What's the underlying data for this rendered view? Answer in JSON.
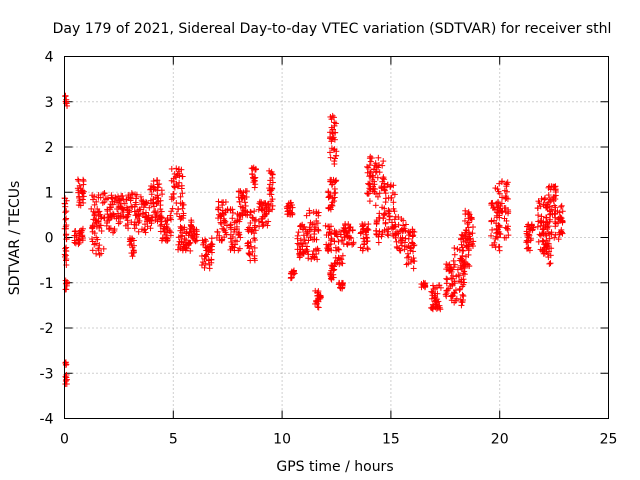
{
  "chart_data": {
    "type": "scatter",
    "title": "Day 179 of 2021, Sidereal Day-to-day VTEC variation (SDTVAR) for receiver sthl",
    "xlabel": "GPS time / hours",
    "ylabel": "SDTVAR / TECUs",
    "xlim": [
      0,
      25
    ],
    "ylim": [
      -4,
      4
    ],
    "xticks": [
      "0",
      "5",
      "10",
      "15",
      "20",
      "25"
    ],
    "yticks": [
      "-4",
      "-3",
      "-2",
      "-1",
      "0",
      "1",
      "2",
      "3",
      "4"
    ],
    "grid": true,
    "marker": "+",
    "color": "#ff0000",
    "series": [
      {
        "name": "sthl",
        "segments": [
          {
            "x0": 0.0,
            "x1": 0.1,
            "ylo": -0.7,
            "yhi": 1.1
          },
          {
            "x0": 0.03,
            "x1": 0.12,
            "ylo": 2.85,
            "yhi": 3.15
          },
          {
            "x0": 0.03,
            "x1": 0.12,
            "ylo": -3.3,
            "yhi": -2.75
          },
          {
            "x0": 0.05,
            "x1": 0.12,
            "ylo": -1.25,
            "yhi": -0.95
          },
          {
            "x0": 0.45,
            "x1": 0.85,
            "ylo": -0.15,
            "yhi": 0.2
          },
          {
            "x0": 0.6,
            "x1": 0.9,
            "ylo": 0.7,
            "yhi": 1.3
          },
          {
            "x0": 1.2,
            "x1": 1.9,
            "ylo": -0.4,
            "yhi": 1.0
          },
          {
            "x0": 1.9,
            "x1": 2.5,
            "ylo": 0.1,
            "yhi": 1.0
          },
          {
            "x0": 2.5,
            "x1": 3.4,
            "ylo": 0.2,
            "yhi": 1.0
          },
          {
            "x0": 3.0,
            "x1": 3.2,
            "ylo": -0.45,
            "yhi": 0.0
          },
          {
            "x0": 3.4,
            "x1": 4.0,
            "ylo": 0.1,
            "yhi": 0.9
          },
          {
            "x0": 3.9,
            "x1": 4.5,
            "ylo": 0.3,
            "yhi": 1.3
          },
          {
            "x0": 4.4,
            "x1": 4.9,
            "ylo": -0.1,
            "yhi": 0.5
          },
          {
            "x0": 4.9,
            "x1": 5.5,
            "ylo": 0.4,
            "yhi": 1.55
          },
          {
            "x0": 5.2,
            "x1": 5.8,
            "ylo": -0.3,
            "yhi": 0.25
          },
          {
            "x0": 5.8,
            "x1": 6.1,
            "ylo": -0.1,
            "yhi": 0.4
          },
          {
            "x0": 6.3,
            "x1": 6.8,
            "ylo": -0.7,
            "yhi": 0.0
          },
          {
            "x0": 7.0,
            "x1": 7.5,
            "ylo": -0.1,
            "yhi": 0.8
          },
          {
            "x0": 7.6,
            "x1": 8.1,
            "ylo": -0.3,
            "yhi": 0.7
          },
          {
            "x0": 8.0,
            "x1": 8.4,
            "ylo": 0.4,
            "yhi": 1.05
          },
          {
            "x0": 8.4,
            "x1": 8.8,
            "ylo": -0.6,
            "yhi": 0.7
          },
          {
            "x0": 8.6,
            "x1": 8.8,
            "ylo": 1.1,
            "yhi": 1.55
          },
          {
            "x0": 8.9,
            "x1": 9.4,
            "ylo": 0.2,
            "yhi": 0.8
          },
          {
            "x0": 9.4,
            "x1": 9.6,
            "ylo": 0.6,
            "yhi": 1.5
          },
          {
            "x0": 10.2,
            "x1": 10.5,
            "ylo": 0.5,
            "yhi": 0.8
          },
          {
            "x0": 10.4,
            "x1": 10.6,
            "ylo": -0.9,
            "yhi": -0.7
          },
          {
            "x0": 10.7,
            "x1": 11.1,
            "ylo": -0.5,
            "yhi": 0.3
          },
          {
            "x0": 11.1,
            "x1": 11.7,
            "ylo": -0.5,
            "yhi": 0.6
          },
          {
            "x0": 11.5,
            "x1": 11.8,
            "ylo": -1.55,
            "yhi": -1.15
          },
          {
            "x0": 12.0,
            "x1": 12.3,
            "ylo": -0.3,
            "yhi": 0.3
          },
          {
            "x0": 12.2,
            "x1": 12.4,
            "ylo": -1.0,
            "yhi": -0.6
          },
          {
            "x0": 12.1,
            "x1": 12.5,
            "ylo": 0.6,
            "yhi": 1.3
          },
          {
            "x0": 12.2,
            "x1": 12.5,
            "ylo": 1.6,
            "yhi": 2.75
          },
          {
            "x0": 12.4,
            "x1": 12.8,
            "ylo": -0.6,
            "yhi": 0.2
          },
          {
            "x0": 12.6,
            "x1": 12.8,
            "ylo": -1.15,
            "yhi": -1.0
          },
          {
            "x0": 12.8,
            "x1": 13.3,
            "ylo": -0.2,
            "yhi": 0.3
          },
          {
            "x0": 13.6,
            "x1": 14.0,
            "ylo": -0.3,
            "yhi": 0.3
          },
          {
            "x0": 13.9,
            "x1": 14.3,
            "ylo": 0.8,
            "yhi": 1.8
          },
          {
            "x0": 14.3,
            "x1": 14.7,
            "ylo": -0.2,
            "yhi": 1.8
          },
          {
            "x0": 14.7,
            "x1": 15.2,
            "ylo": 0.0,
            "yhi": 1.2
          },
          {
            "x0": 15.2,
            "x1": 15.7,
            "ylo": -0.3,
            "yhi": 0.5
          },
          {
            "x0": 15.7,
            "x1": 16.1,
            "ylo": -0.7,
            "yhi": 0.2
          },
          {
            "x0": 16.4,
            "x1": 16.6,
            "ylo": -1.1,
            "yhi": -1.0
          },
          {
            "x0": 16.8,
            "x1": 17.3,
            "ylo": -1.6,
            "yhi": -1.05
          },
          {
            "x0": 17.5,
            "x1": 18.0,
            "ylo": -1.4,
            "yhi": -0.5
          },
          {
            "x0": 17.9,
            "x1": 18.4,
            "ylo": -1.5,
            "yhi": -0.2
          },
          {
            "x0": 18.2,
            "x1": 18.6,
            "ylo": -0.7,
            "yhi": 0.2
          },
          {
            "x0": 18.4,
            "x1": 18.8,
            "ylo": -0.2,
            "yhi": 0.6
          },
          {
            "x0": 19.6,
            "x1": 20.0,
            "ylo": -0.3,
            "yhi": 0.8
          },
          {
            "x0": 19.8,
            "x1": 20.4,
            "ylo": -0.1,
            "yhi": 1.25
          },
          {
            "x0": 21.2,
            "x1": 21.6,
            "ylo": -0.3,
            "yhi": 0.3
          },
          {
            "x0": 21.7,
            "x1": 22.2,
            "ylo": -0.4,
            "yhi": 0.9
          },
          {
            "x0": 22.0,
            "x1": 22.4,
            "ylo": -0.6,
            "yhi": 0.4
          },
          {
            "x0": 22.2,
            "x1": 22.6,
            "ylo": 0.5,
            "yhi": 1.15
          },
          {
            "x0": 22.5,
            "x1": 22.9,
            "ylo": -0.1,
            "yhi": 0.7
          }
        ]
      }
    ]
  }
}
